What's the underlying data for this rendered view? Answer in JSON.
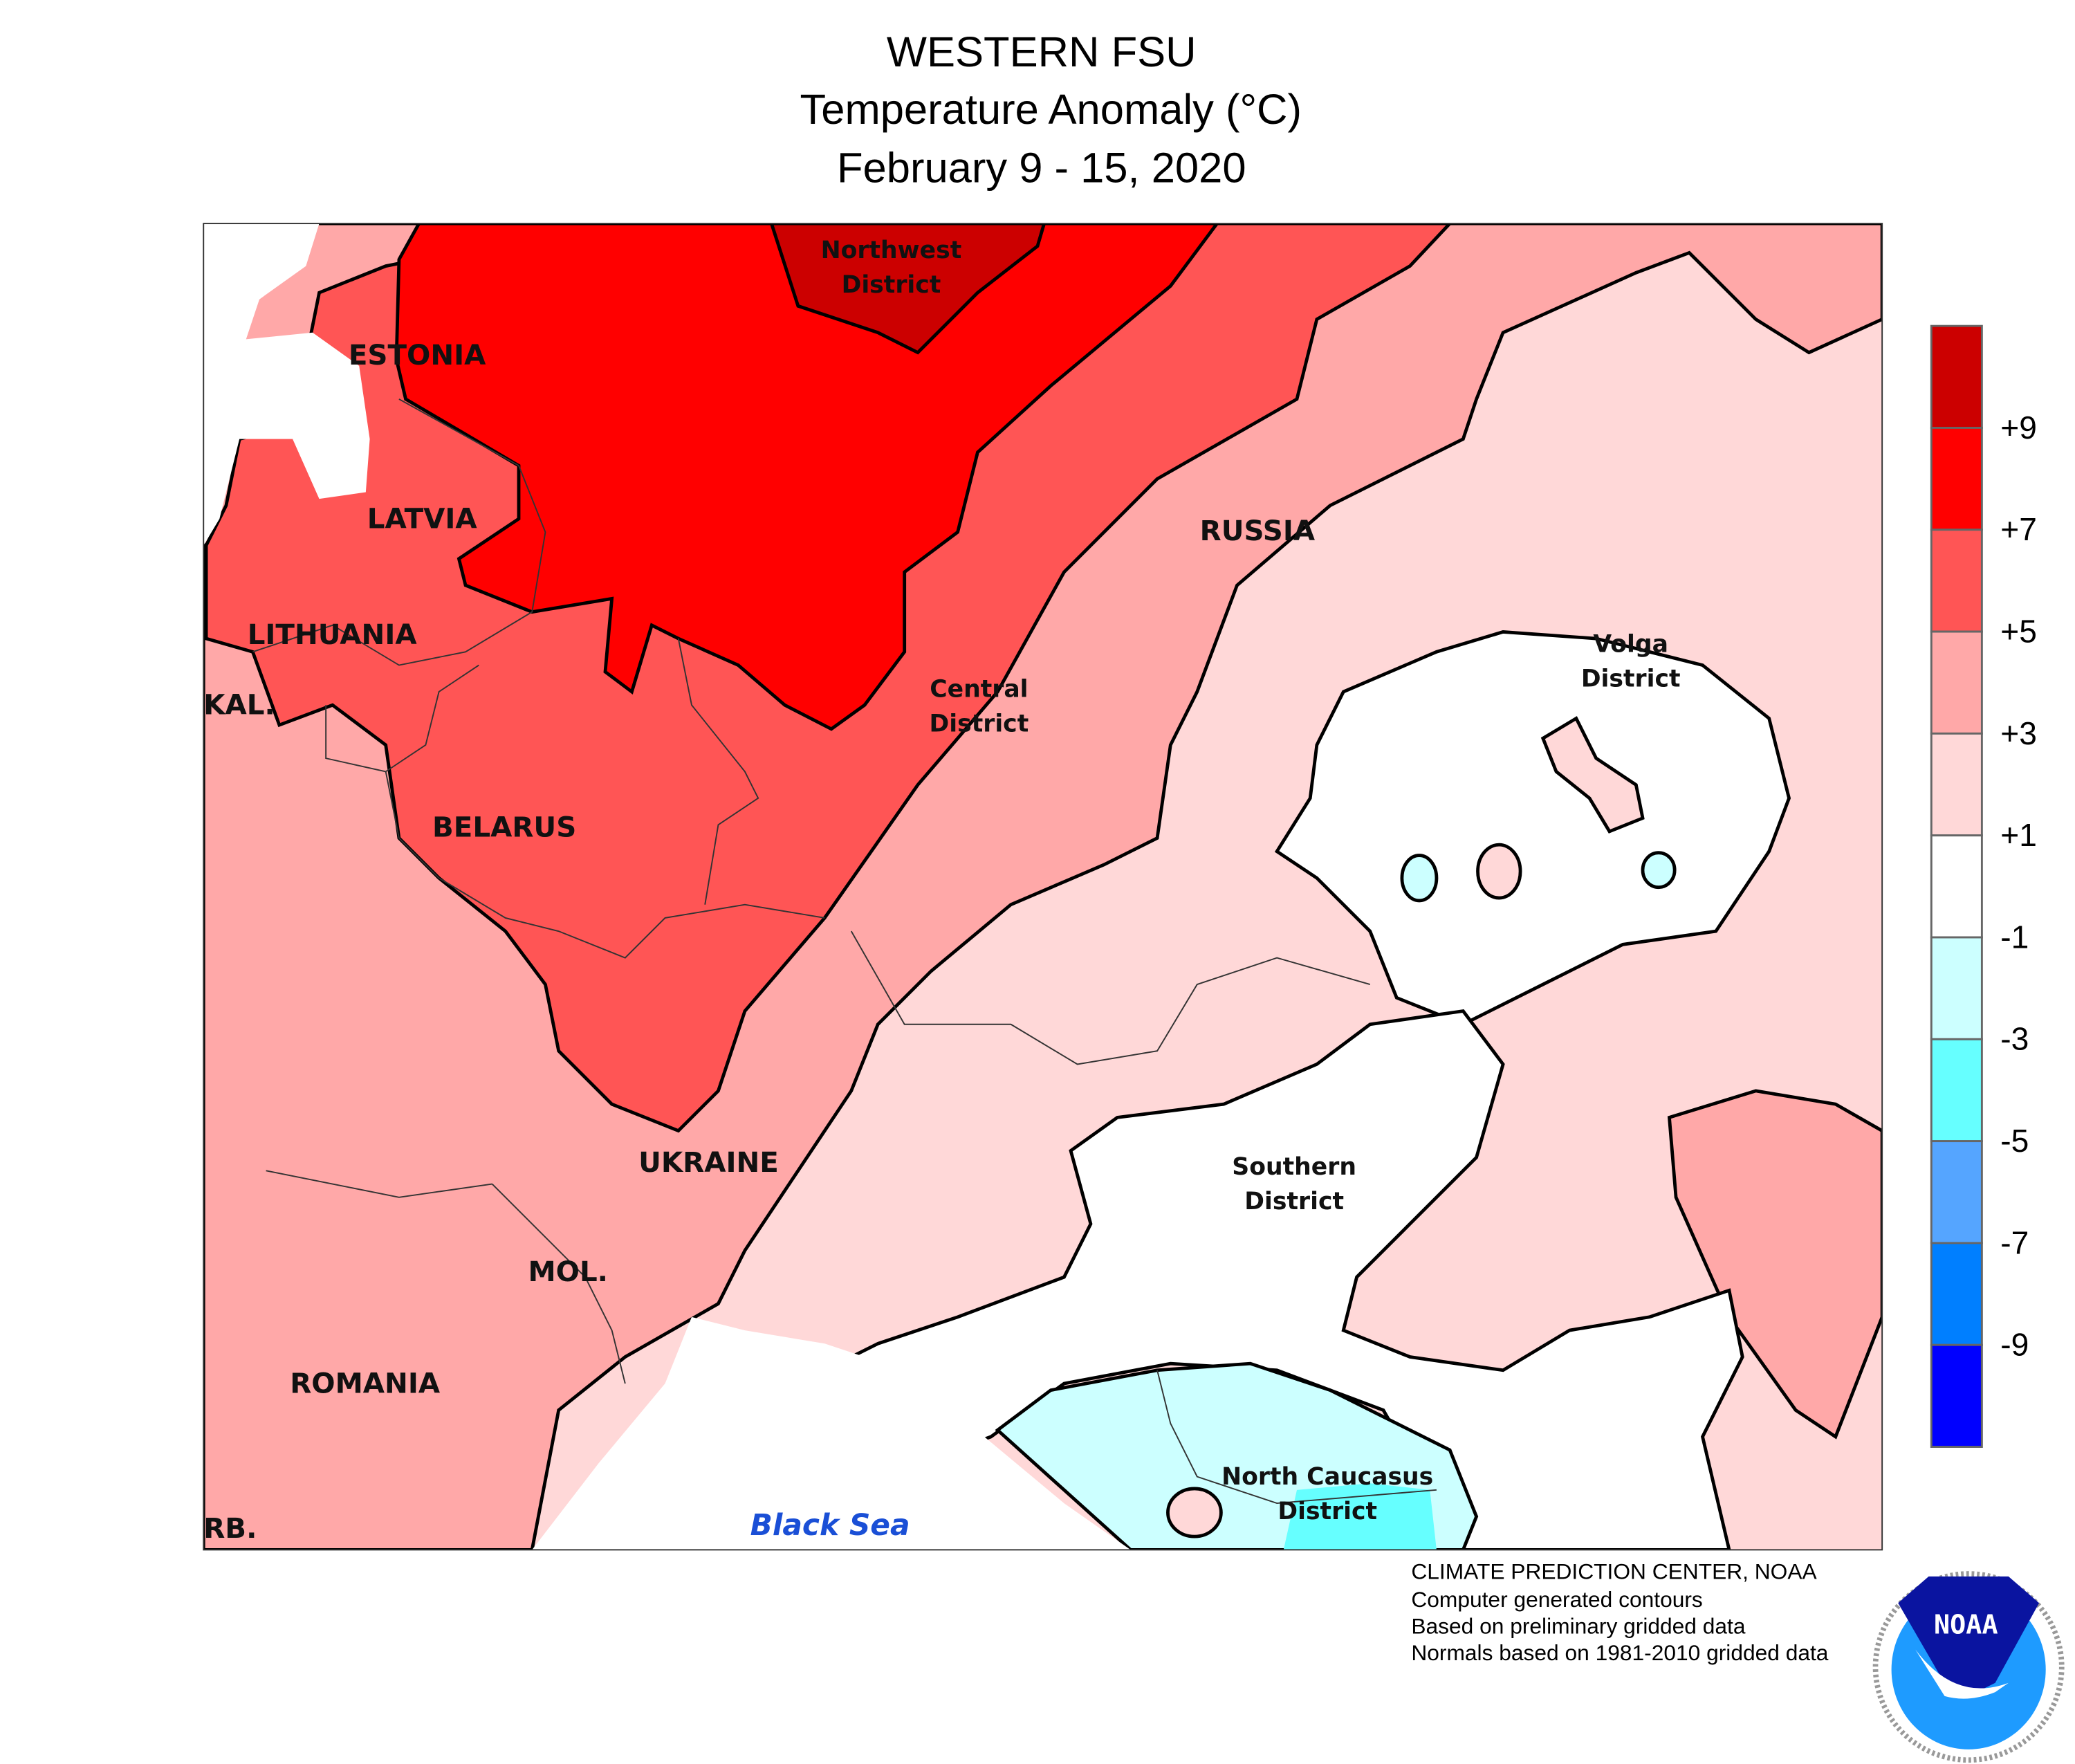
{
  "title": {
    "line1": "WESTERN FSU",
    "line2": "Temperature Anomaly (°C)",
    "line3": "February 9 - 15, 2020"
  },
  "map": {
    "country_labels": [
      "ESTONIA",
      "LATVIA",
      "LITHUANIA",
      "KAL.",
      "BELARUS",
      "UKRAINE",
      "MOL.",
      "ROMANIA",
      "RUSSIA",
      "RB."
    ],
    "district_labels": [
      {
        "line1": "Northwest",
        "line2": "District"
      },
      {
        "line1": "Central",
        "line2": "District"
      },
      {
        "line1": "Volga",
        "line2": "District"
      },
      {
        "line1": "Southern",
        "line2": "District"
      },
      {
        "line1": "North Caucasus",
        "line2": "District"
      }
    ],
    "sea_label": "Black Sea"
  },
  "legend": {
    "colors": [
      "#CC0000",
      "#FF0000",
      "#FF5555",
      "#FFA8A8",
      "#FFD8D8",
      "#FFFFFF",
      "#CCFFFF",
      "#66FFFF",
      "#55A5FF",
      "#007FFF",
      "#0000FF"
    ],
    "labels": [
      "+9",
      "+7",
      "+5",
      "+3",
      "+1",
      "-1",
      "-3",
      "-5",
      "-7",
      "-9"
    ]
  },
  "credits": {
    "line1": "CLIMATE PREDICTION CENTER, NOAA",
    "line2": "Computer generated contours",
    "line3": "Based on preliminary gridded data",
    "line4": "Normals based on 1981-2010 gridded data"
  },
  "logo": {
    "text": "NOAA",
    "ring_text": "NATIONAL OCEANIC AND ATMOSPHERIC ADMINISTRATION · U.S. DEPARTMENT OF COMMERCE",
    "colors": {
      "navy": "#0A14A0",
      "sky": "#1E9BFF"
    }
  }
}
